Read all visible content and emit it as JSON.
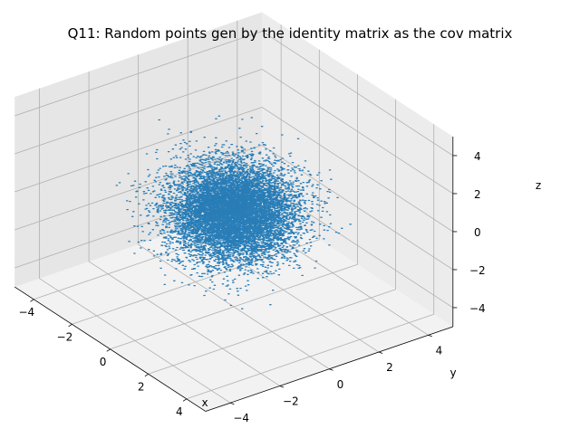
{
  "chart_data": {
    "type": "scatter",
    "title": "Q11: Random points gen by the identity matrix as the cov matrix",
    "xlabel": "x",
    "ylabel": "y",
    "zlabel": "z",
    "projection": "3d",
    "xlim": [
      -5,
      5
    ],
    "ylim": [
      -5,
      5
    ],
    "zlim": [
      -5,
      5
    ],
    "xticks": [
      -4,
      -2,
      0,
      2,
      4
    ],
    "yticks": [
      -4,
      -2,
      0,
      2,
      4
    ],
    "zticks": [
      -4,
      -2,
      0,
      2,
      4
    ],
    "grid": true,
    "distribution": {
      "kind": "multivariate normal",
      "mean": [
        0,
        0,
        0
      ],
      "cov": [
        [
          1,
          0,
          0
        ],
        [
          0,
          1,
          0
        ],
        [
          0,
          0,
          1
        ]
      ],
      "n_points_approx": 10000
    },
    "series": [
      {
        "color": "#1f77b4",
        "marker": "dot"
      }
    ]
  }
}
